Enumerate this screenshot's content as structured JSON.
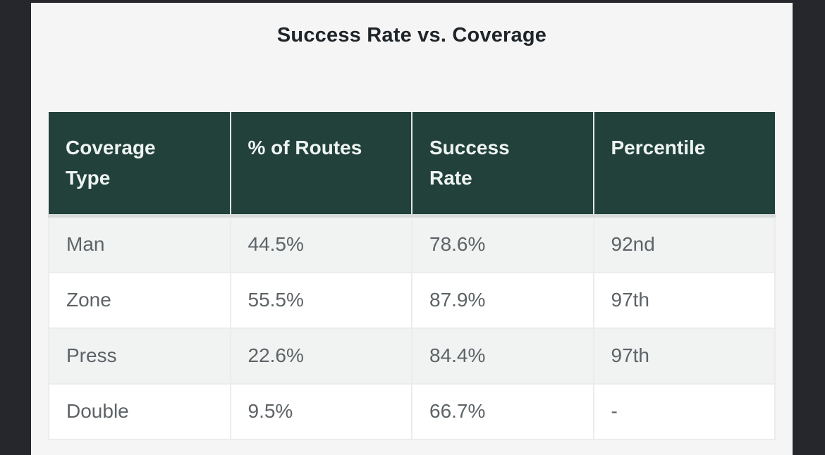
{
  "page": {
    "title": "Success Rate vs. Coverage"
  },
  "colors": {
    "surround_bg": "#26272c",
    "card_bg": "#f5f5f6",
    "header_bg": "#22413a",
    "header_text": "#eef4f2",
    "body_text": "#5d6367",
    "title_text": "#1f2428",
    "alt_row_bg": "#f1f2f2",
    "row_bg": "#ffffff",
    "border": "#ebecec"
  },
  "chart_data": {
    "type": "table",
    "title": "Success Rate vs. Coverage",
    "columns": [
      "Coverage Type",
      "% of Routes",
      "Success Rate",
      "Percentile"
    ],
    "rows": [
      [
        "Man",
        "44.5%",
        "78.6%",
        "92nd"
      ],
      [
        "Zone",
        "55.5%",
        "87.9%",
        "97th"
      ],
      [
        "Press",
        "22.6%",
        "84.4%",
        "97th"
      ],
      [
        "Double",
        "9.5%",
        "66.7%",
        "-"
      ]
    ]
  }
}
